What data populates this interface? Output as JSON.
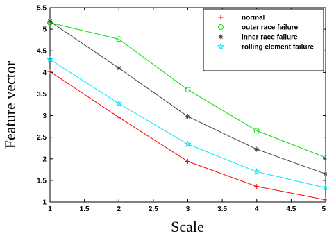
{
  "chart_data": {
    "type": "line",
    "title": "",
    "xlabel": "Scale",
    "ylabel": "Feature vector",
    "xlim": [
      1,
      5
    ],
    "ylim": [
      1,
      5.5
    ],
    "xticks": [
      "1",
      "1.5",
      "2",
      "2.5",
      "3",
      "3.5",
      "4",
      "4.5",
      "5"
    ],
    "yticks": [
      "1",
      "1.5",
      "2",
      "2.5",
      "3",
      "3.5",
      "4",
      "4.5",
      "5",
      "5.5"
    ],
    "grid": false,
    "legend_position": "top-right",
    "x": [
      1,
      2,
      3,
      4,
      5
    ],
    "series": [
      {
        "name": "normal",
        "values": [
          4.02,
          2.96,
          1.94,
          1.36,
          1.05
        ],
        "color": "#ff0000",
        "marker": "plus"
      },
      {
        "name": "outer race failure",
        "values": [
          5.15,
          4.77,
          3.6,
          2.65,
          2.03
        ],
        "color": "#00dd00",
        "marker": "circle"
      },
      {
        "name": "inner race failure",
        "values": [
          5.18,
          4.1,
          2.98,
          2.22,
          1.65
        ],
        "color": "#404040",
        "marker": "asterisk"
      },
      {
        "name": "rolling element failure",
        "values": [
          4.3,
          3.28,
          2.34,
          1.7,
          1.33
        ],
        "color": "#00e5ff",
        "marker": "star"
      }
    ]
  }
}
